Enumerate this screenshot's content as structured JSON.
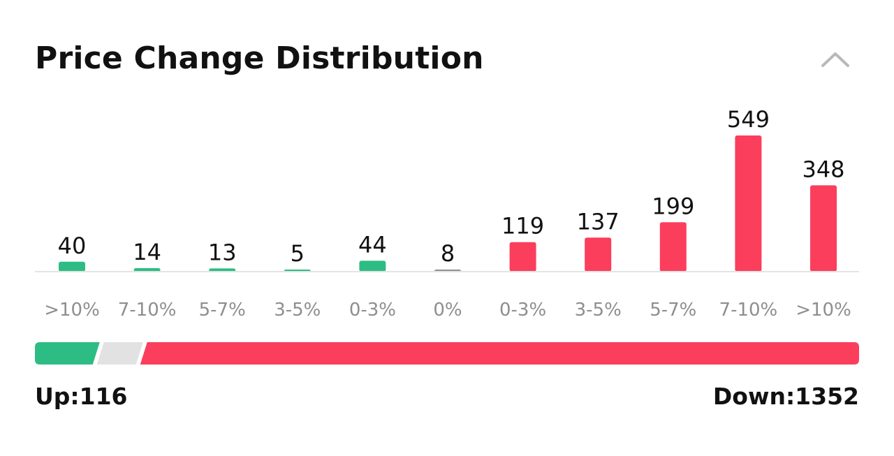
{
  "title": "Price Change Distribution",
  "collapse_icon": "chevron-up-icon",
  "colors": {
    "up": "#2dbd84",
    "flat": "#8f8f8f",
    "flat_segment": "#e2e2e2",
    "down": "#fb3e5c",
    "baseline": "#e4e4e4"
  },
  "chart_data": {
    "type": "bar",
    "categories": [
      ">10%",
      "7-10%",
      "5-7%",
      "3-5%",
      "0-3%",
      "0%",
      "0-3%",
      "3-5%",
      "5-7%",
      "7-10%",
      ">10%"
    ],
    "values": [
      40,
      14,
      13,
      5,
      44,
      8,
      119,
      137,
      199,
      549,
      348
    ],
    "groups": [
      "up",
      "up",
      "up",
      "up",
      "up",
      "flat",
      "down",
      "down",
      "down",
      "down",
      "down"
    ],
    "ylim": [
      0,
      549
    ],
    "grid": false,
    "legend": "none"
  },
  "summary": {
    "up_text": "Up:116",
    "down_text": "Down:1352",
    "up_count": 116,
    "flat_count": 8,
    "down_count": 1352
  }
}
